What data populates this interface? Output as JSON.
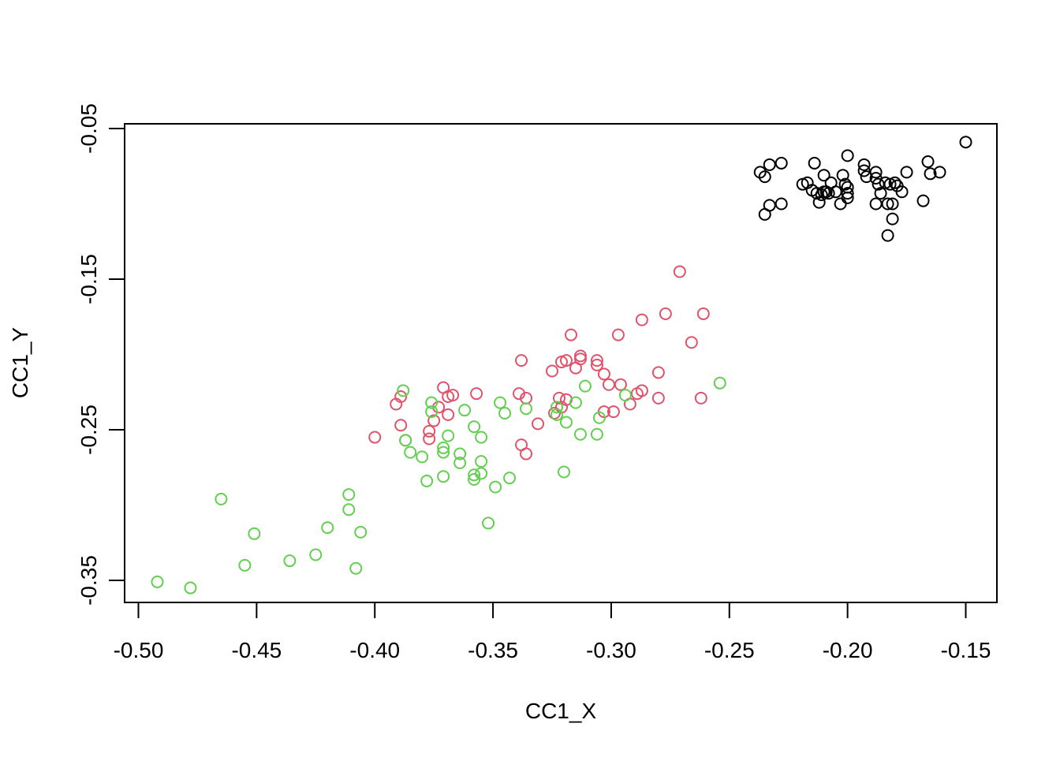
{
  "chart_data": {
    "type": "scatter",
    "title": "",
    "xlabel": "CC1_X",
    "ylabel": "CC1_Y",
    "xlim": [
      -0.5,
      -0.15
    ],
    "ylim": [
      -0.35,
      -0.05
    ],
    "xticks": [
      "-0.50",
      "-0.45",
      "-0.40",
      "-0.35",
      "-0.30",
      "-0.25",
      "-0.20",
      "-0.15"
    ],
    "yticks": [
      "-0.05",
      "-0.15",
      "-0.25",
      "-0.35"
    ],
    "grid": false,
    "legend": "none",
    "marker": "open-circle",
    "series": [
      {
        "color": "#000000",
        "points": [
          [
            -0.15,
            -0.059
          ],
          [
            -0.161,
            -0.079
          ],
          [
            -0.165,
            -0.08
          ],
          [
            -0.166,
            -0.072
          ],
          [
            -0.168,
            -0.098
          ],
          [
            -0.175,
            -0.079
          ],
          [
            -0.177,
            -0.092
          ],
          [
            -0.179,
            -0.088
          ],
          [
            -0.18,
            -0.086
          ],
          [
            -0.181,
            -0.11
          ],
          [
            -0.181,
            -0.1
          ],
          [
            -0.182,
            -0.087
          ],
          [
            -0.183,
            -0.1
          ],
          [
            -0.183,
            -0.121
          ],
          [
            -0.184,
            -0.086
          ],
          [
            -0.186,
            -0.093
          ],
          [
            -0.187,
            -0.087
          ],
          [
            -0.188,
            -0.079
          ],
          [
            -0.188,
            -0.083
          ],
          [
            -0.188,
            -0.1
          ],
          [
            -0.192,
            -0.082
          ],
          [
            -0.193,
            -0.078
          ],
          [
            -0.193,
            -0.074
          ],
          [
            -0.2,
            -0.068
          ],
          [
            -0.2,
            -0.096
          ],
          [
            -0.2,
            -0.093
          ],
          [
            -0.2,
            -0.089
          ],
          [
            -0.201,
            -0.087
          ],
          [
            -0.202,
            -0.081
          ],
          [
            -0.203,
            -0.1
          ],
          [
            -0.205,
            -0.092
          ],
          [
            -0.207,
            -0.086
          ],
          [
            -0.208,
            -0.093
          ],
          [
            -0.209,
            -0.092
          ],
          [
            -0.21,
            -0.081
          ],
          [
            -0.21,
            -0.092
          ],
          [
            -0.211,
            -0.094
          ],
          [
            -0.212,
            -0.099
          ],
          [
            -0.213,
            -0.093
          ],
          [
            -0.214,
            -0.073
          ],
          [
            -0.215,
            -0.091
          ],
          [
            -0.217,
            -0.086
          ],
          [
            -0.219,
            -0.087
          ],
          [
            -0.228,
            -0.073
          ],
          [
            -0.228,
            -0.1
          ],
          [
            -0.233,
            -0.074
          ],
          [
            -0.233,
            -0.101
          ],
          [
            -0.235,
            -0.082
          ],
          [
            -0.235,
            -0.107
          ],
          [
            -0.237,
            -0.079
          ]
        ]
      },
      {
        "color": "#DF536B",
        "points": [
          [
            -0.271,
            -0.145
          ],
          [
            -0.261,
            -0.173
          ],
          [
            -0.262,
            -0.229
          ],
          [
            -0.266,
            -0.192
          ],
          [
            -0.277,
            -0.173
          ],
          [
            -0.28,
            -0.212
          ],
          [
            -0.28,
            -0.229
          ],
          [
            -0.287,
            -0.224
          ],
          [
            -0.287,
            -0.177
          ],
          [
            -0.289,
            -0.226
          ],
          [
            -0.292,
            -0.233
          ],
          [
            -0.296,
            -0.22
          ],
          [
            -0.297,
            -0.187
          ],
          [
            -0.299,
            -0.238
          ],
          [
            -0.303,
            -0.238
          ],
          [
            -0.301,
            -0.22
          ],
          [
            -0.303,
            -0.213
          ],
          [
            -0.306,
            -0.207
          ],
          [
            -0.306,
            -0.204
          ],
          [
            -0.313,
            -0.201
          ],
          [
            -0.313,
            -0.203
          ],
          [
            -0.315,
            -0.209
          ],
          [
            -0.317,
            -0.187
          ],
          [
            -0.319,
            -0.204
          ],
          [
            -0.319,
            -0.23
          ],
          [
            -0.321,
            -0.235
          ],
          [
            -0.321,
            -0.205
          ],
          [
            -0.322,
            -0.229
          ],
          [
            -0.324,
            -0.239
          ],
          [
            -0.325,
            -0.211
          ],
          [
            -0.331,
            -0.246
          ],
          [
            -0.336,
            -0.229
          ],
          [
            -0.336,
            -0.266
          ],
          [
            -0.338,
            -0.204
          ],
          [
            -0.338,
            -0.26
          ],
          [
            -0.339,
            -0.226
          ],
          [
            -0.357,
            -0.226
          ],
          [
            -0.367,
            -0.227
          ],
          [
            -0.369,
            -0.228
          ],
          [
            -0.369,
            -0.24
          ],
          [
            -0.371,
            -0.222
          ],
          [
            -0.373,
            -0.235
          ],
          [
            -0.375,
            -0.244
          ],
          [
            -0.377,
            -0.251
          ],
          [
            -0.377,
            -0.256
          ],
          [
            -0.387,
            -0.257
          ],
          [
            -0.389,
            -0.228
          ],
          [
            -0.389,
            -0.247
          ],
          [
            -0.391,
            -0.233
          ],
          [
            -0.4,
            -0.255
          ]
        ]
      },
      {
        "color": "#61D04F",
        "points": [
          [
            -0.254,
            -0.219
          ],
          [
            -0.294,
            -0.227
          ],
          [
            -0.305,
            -0.242
          ],
          [
            -0.306,
            -0.253
          ],
          [
            -0.311,
            -0.221
          ],
          [
            -0.313,
            -0.253
          ],
          [
            -0.315,
            -0.232
          ],
          [
            -0.319,
            -0.245
          ],
          [
            -0.32,
            -0.278
          ],
          [
            -0.323,
            -0.235
          ],
          [
            -0.323,
            -0.24
          ],
          [
            -0.336,
            -0.236
          ],
          [
            -0.343,
            -0.282
          ],
          [
            -0.345,
            -0.239
          ],
          [
            -0.347,
            -0.232
          ],
          [
            -0.349,
            -0.288
          ],
          [
            -0.352,
            -0.312
          ],
          [
            -0.355,
            -0.255
          ],
          [
            -0.355,
            -0.271
          ],
          [
            -0.355,
            -0.279
          ],
          [
            -0.358,
            -0.248
          ],
          [
            -0.358,
            -0.28
          ],
          [
            -0.358,
            -0.283
          ],
          [
            -0.362,
            -0.237
          ],
          [
            -0.364,
            -0.266
          ],
          [
            -0.364,
            -0.272
          ],
          [
            -0.369,
            -0.254
          ],
          [
            -0.371,
            -0.262
          ],
          [
            -0.371,
            -0.265
          ],
          [
            -0.371,
            -0.281
          ],
          [
            -0.376,
            -0.232
          ],
          [
            -0.376,
            -0.238
          ],
          [
            -0.378,
            -0.284
          ],
          [
            -0.38,
            -0.268
          ],
          [
            -0.385,
            -0.265
          ],
          [
            -0.387,
            -0.257
          ],
          [
            -0.388,
            -0.224
          ],
          [
            -0.406,
            -0.318
          ],
          [
            -0.408,
            -0.342
          ],
          [
            -0.411,
            -0.293
          ],
          [
            -0.411,
            -0.303
          ],
          [
            -0.42,
            -0.315
          ],
          [
            -0.425,
            -0.333
          ],
          [
            -0.436,
            -0.337
          ],
          [
            -0.451,
            -0.319
          ],
          [
            -0.455,
            -0.34
          ],
          [
            -0.465,
            -0.296
          ],
          [
            -0.478,
            -0.355
          ],
          [
            -0.492,
            -0.351
          ]
        ]
      }
    ]
  }
}
